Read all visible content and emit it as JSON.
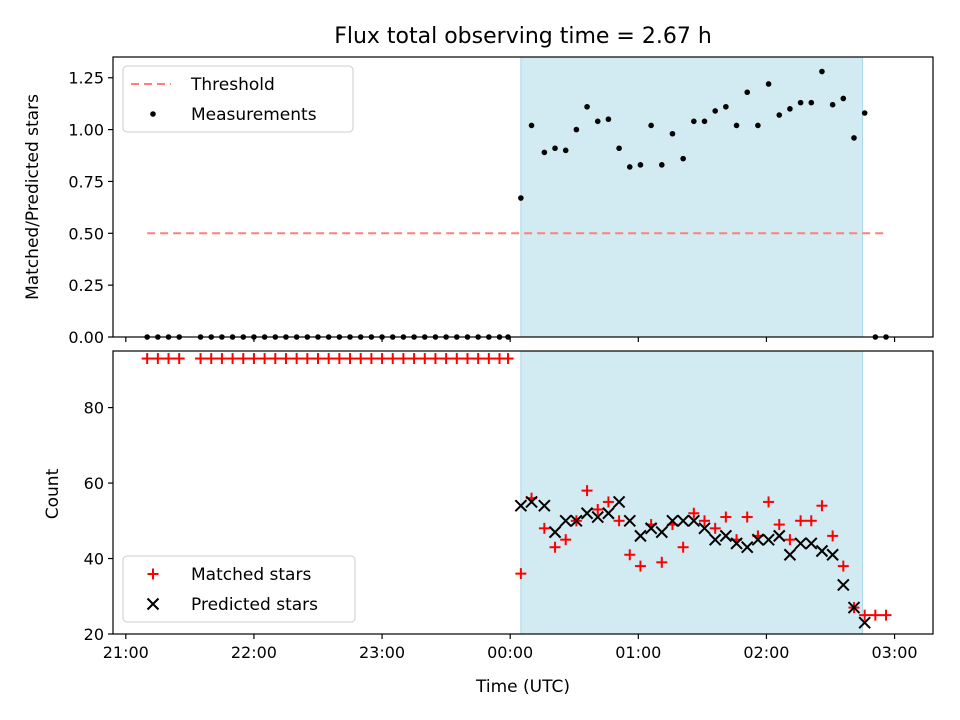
{
  "figure": {
    "title": "Flux total observing time = 2.67 h",
    "xlabel": "Time (UTC)",
    "x_tick_labels": [
      "21:00",
      "22:00",
      "23:00",
      "00:00",
      "01:00",
      "02:00",
      "03:00"
    ]
  },
  "colors": {
    "shade": "#add8e6",
    "threshold": "#ff7f7f",
    "measurement": "#000000",
    "matched": "#ff0000",
    "predicted": "#000000"
  },
  "chart_data": [
    {
      "type": "scatter",
      "ylabel": "Matched/Predicted stars",
      "xlim": [
        -3.1,
        3.3
      ],
      "ylim": [
        0,
        1.35
      ],
      "y_ticks": [
        0,
        0.25,
        0.5,
        0.75,
        1.0,
        1.25
      ],
      "y_tick_labels": [
        "0.00",
        "0.25",
        "0.50",
        "0.75",
        "1.00",
        "1.25"
      ],
      "shaded_span": [
        "00:05",
        "02:45"
      ],
      "legend": {
        "position": "top-left",
        "entries": [
          "Threshold",
          "Measurements"
        ]
      },
      "threshold": {
        "name": "Threshold",
        "y": 0.5,
        "x_range": [
          "21:10",
          "02:55"
        ]
      },
      "series": [
        {
          "name": "Measurements",
          "x": [
            "21:10",
            "21:15",
            "21:20",
            "21:25",
            "21:35",
            "21:40",
            "21:45",
            "21:50",
            "21:55",
            "22:00",
            "22:05",
            "22:10",
            "22:15",
            "22:20",
            "22:25",
            "22:30",
            "22:35",
            "22:40",
            "22:45",
            "22:50",
            "22:55",
            "23:00",
            "23:05",
            "23:10",
            "23:15",
            "23:20",
            "23:25",
            "23:30",
            "23:35",
            "23:40",
            "23:45",
            "23:50",
            "23:55",
            "23:59",
            "00:05",
            "00:10",
            "00:16",
            "00:21",
            "00:26",
            "00:31",
            "00:36",
            "00:41",
            "00:46",
            "00:51",
            "00:56",
            "01:01",
            "01:06",
            "01:11",
            "01:16",
            "01:21",
            "01:26",
            "01:31",
            "01:36",
            "01:41",
            "01:46",
            "01:51",
            "01:56",
            "02:01",
            "02:06",
            "02:11",
            "02:16",
            "02:21",
            "02:26",
            "02:31",
            "02:36",
            "02:41",
            "02:46",
            "02:51",
            "02:56"
          ],
          "y": [
            0,
            0,
            0,
            0,
            0,
            0,
            0,
            0,
            0,
            0,
            0,
            0,
            0,
            0,
            0,
            0,
            0,
            0,
            0,
            0,
            0,
            0,
            0,
            0,
            0,
            0,
            0,
            0,
            0,
            0,
            0,
            0,
            0,
            0,
            0.67,
            1.02,
            0.89,
            0.91,
            0.9,
            1.0,
            1.11,
            1.04,
            1.05,
            0.91,
            0.82,
            0.83,
            1.02,
            0.83,
            0.98,
            0.86,
            1.04,
            1.04,
            1.09,
            1.11,
            1.02,
            1.18,
            1.02,
            1.22,
            1.07,
            1.1,
            1.13,
            1.13,
            1.28,
            1.12,
            1.15,
            0.96,
            1.08,
            0,
            0
          ]
        }
      ]
    },
    {
      "type": "scatter",
      "ylabel": "Count",
      "xlim": [
        -3.1,
        3.3
      ],
      "ylim": [
        20,
        95
      ],
      "y_ticks": [
        20,
        40,
        60,
        80
      ],
      "y_tick_labels": [
        "20",
        "40",
        "60",
        "80"
      ],
      "shaded_span": [
        "00:05",
        "02:45"
      ],
      "legend": {
        "position": "bottom-left",
        "entries": [
          "Matched stars",
          "Predicted stars"
        ]
      },
      "series": [
        {
          "name": "Matched stars",
          "marker": "plus",
          "x": [
            "21:10",
            "21:15",
            "21:20",
            "21:25",
            "21:35",
            "21:40",
            "21:45",
            "21:50",
            "21:55",
            "22:00",
            "22:05",
            "22:10",
            "22:15",
            "22:20",
            "22:25",
            "22:30",
            "22:35",
            "22:40",
            "22:45",
            "22:50",
            "22:55",
            "23:00",
            "23:05",
            "23:10",
            "23:15",
            "23:20",
            "23:25",
            "23:30",
            "23:35",
            "23:40",
            "23:45",
            "23:50",
            "23:55",
            "23:59",
            "00:05",
            "00:10",
            "00:16",
            "00:21",
            "00:26",
            "00:31",
            "00:36",
            "00:41",
            "00:46",
            "00:51",
            "00:56",
            "01:01",
            "01:06",
            "01:11",
            "01:16",
            "01:21",
            "01:26",
            "01:31",
            "01:36",
            "01:41",
            "01:46",
            "01:51",
            "01:56",
            "02:01",
            "02:06",
            "02:11",
            "02:16",
            "02:21",
            "02:26",
            "02:31",
            "02:36",
            "02:41",
            "02:46",
            "02:51",
            "02:56"
          ],
          "y": [
            93,
            93,
            93,
            93,
            93,
            93,
            93,
            93,
            93,
            93,
            93,
            93,
            93,
            93,
            93,
            93,
            93,
            93,
            93,
            93,
            93,
            93,
            93,
            93,
            93,
            93,
            93,
            93,
            93,
            93,
            93,
            93,
            93,
            93,
            36,
            56,
            48,
            43,
            45,
            50,
            58,
            53,
            55,
            50,
            41,
            38,
            49,
            39,
            49,
            43,
            52,
            50,
            48,
            51,
            45,
            51,
            46,
            55,
            49,
            45,
            50,
            50,
            54,
            46,
            38,
            27,
            25,
            25,
            25
          ]
        },
        {
          "name": "Predicted stars",
          "marker": "x",
          "x": [
            "00:05",
            "00:10",
            "00:16",
            "00:21",
            "00:26",
            "00:31",
            "00:36",
            "00:41",
            "00:46",
            "00:51",
            "00:56",
            "01:01",
            "01:06",
            "01:11",
            "01:16",
            "01:21",
            "01:26",
            "01:31",
            "01:36",
            "01:41",
            "01:46",
            "01:51",
            "01:56",
            "02:01",
            "02:06",
            "02:11",
            "02:16",
            "02:21",
            "02:26",
            "02:31",
            "02:36",
            "02:41",
            "02:46"
          ],
          "y": [
            54,
            55,
            54,
            47,
            50,
            50,
            52,
            51,
            52,
            55,
            50,
            46,
            48,
            47,
            50,
            50,
            50,
            48,
            45,
            46,
            44,
            43,
            45,
            45,
            46,
            41,
            44,
            44,
            42,
            41,
            33,
            27,
            23
          ]
        }
      ]
    }
  ]
}
